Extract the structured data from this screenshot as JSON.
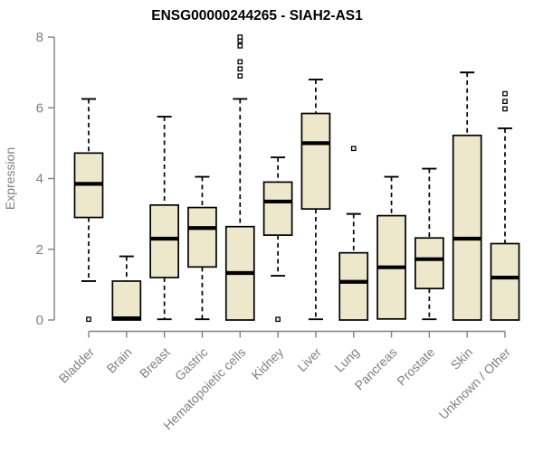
{
  "figure": {
    "title": "ENSG00000244265 - SIAH2-AS1",
    "ylabel": "Expression"
  },
  "chart_data": {
    "type": "box",
    "title": "ENSG00000244265 - SIAH2-AS1",
    "xlabel": "",
    "ylabel": "Expression",
    "ylim": [
      0,
      8
    ],
    "yticks": [
      0,
      2,
      4,
      6,
      8
    ],
    "grid": false,
    "legend": "none",
    "categories": [
      "Bladder",
      "Brain",
      "Breast",
      "Gastric",
      "Hematopoietic cells",
      "Kidney",
      "Liver",
      "Lung",
      "Pancreas",
      "Prostate",
      "Skin",
      "Unknown / Other"
    ],
    "series": [
      {
        "name": "Bladder",
        "whisker_low": 1.1,
        "q1": 2.9,
        "median": 3.85,
        "q3": 4.72,
        "whisker_high": 6.25,
        "outliers": [
          0.02
        ]
      },
      {
        "name": "Brain",
        "whisker_low": 0.0,
        "q1": 0.0,
        "median": 0.05,
        "q3": 1.1,
        "whisker_high": 1.8,
        "outliers": []
      },
      {
        "name": "Breast",
        "whisker_low": 0.02,
        "q1": 1.2,
        "median": 2.3,
        "q3": 3.25,
        "whisker_high": 5.75,
        "outliers": []
      },
      {
        "name": "Gastric",
        "whisker_low": 0.02,
        "q1": 1.5,
        "median": 2.6,
        "q3": 3.18,
        "whisker_high": 4.05,
        "outliers": []
      },
      {
        "name": "Hematopoietic cells",
        "whisker_low": 0.0,
        "q1": 0.0,
        "median": 1.33,
        "q3": 2.64,
        "whisker_high": 6.25,
        "outliers": [
          6.9,
          7.1,
          7.3,
          7.75,
          7.9,
          8.0
        ]
      },
      {
        "name": "Kidney",
        "whisker_low": 1.25,
        "q1": 2.4,
        "median": 3.35,
        "q3": 3.9,
        "whisker_high": 4.6,
        "outliers": [
          0.02
        ]
      },
      {
        "name": "Liver",
        "whisker_low": 0.02,
        "q1": 3.14,
        "median": 5.0,
        "q3": 5.84,
        "whisker_high": 6.8,
        "outliers": []
      },
      {
        "name": "Lung",
        "whisker_low": 0.0,
        "q1": 0.0,
        "median": 1.08,
        "q3": 1.9,
        "whisker_high": 3.0,
        "outliers": [
          4.85
        ]
      },
      {
        "name": "Pancreas",
        "whisker_low": 0.0,
        "q1": 0.03,
        "median": 1.49,
        "q3": 2.95,
        "whisker_high": 4.05,
        "outliers": []
      },
      {
        "name": "Prostate",
        "whisker_low": 0.02,
        "q1": 0.89,
        "median": 1.72,
        "q3": 2.32,
        "whisker_high": 4.28,
        "outliers": []
      },
      {
        "name": "Skin",
        "whisker_low": 0.0,
        "q1": 0.0,
        "median": 2.3,
        "q3": 5.22,
        "whisker_high": 7.0,
        "outliers": []
      },
      {
        "name": "Unknown / Other",
        "whisker_low": 0.0,
        "q1": 0.0,
        "median": 1.2,
        "q3": 2.16,
        "whisker_high": 5.42,
        "outliers": [
          5.97,
          6.18,
          6.4
        ]
      }
    ],
    "colors": {
      "box_fill": "#EDE8CC",
      "box_stroke": "#000000",
      "median": "#000000",
      "axis": "#808080",
      "title": "#000000"
    }
  }
}
